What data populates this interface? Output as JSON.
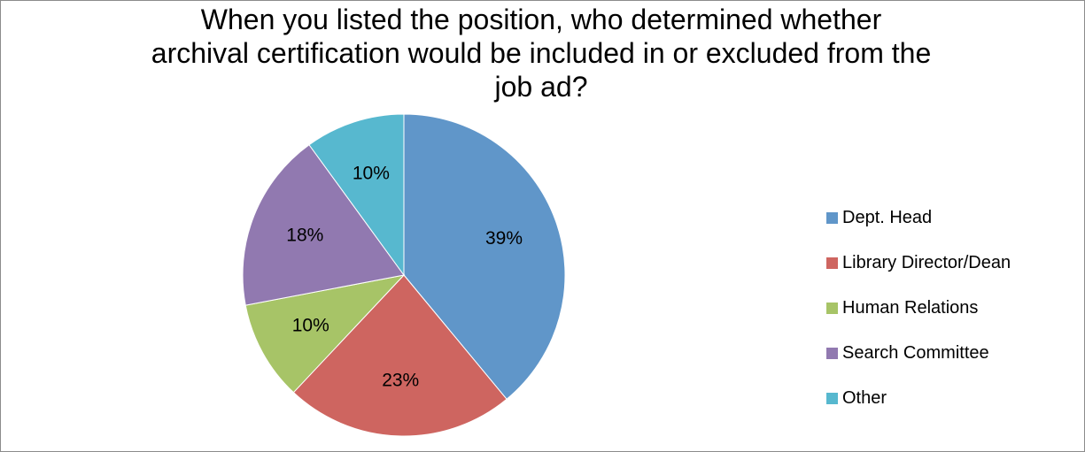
{
  "chart_data": {
    "type": "pie",
    "title_lines": [
      "When you listed the position, who determined whether",
      "archival certification would be included in or excluded from the",
      "job ad?"
    ],
    "categories": [
      "Dept. Head",
      "Library Director/Dean",
      "Human Relations",
      "Search Committee",
      "Other"
    ],
    "values": [
      39,
      23,
      10,
      18,
      10
    ],
    "labels": [
      "39%",
      "23%",
      "10%",
      "18%",
      "10%"
    ],
    "colors": [
      "#6096C9",
      "#CE6560",
      "#A7C467",
      "#9179B0",
      "#57B8CF"
    ],
    "legend_position": "right"
  }
}
